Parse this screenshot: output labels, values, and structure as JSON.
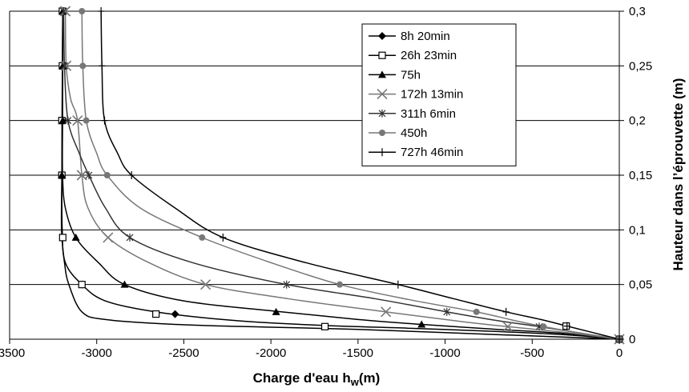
{
  "chart_data": {
    "type": "line",
    "xlabel": "Charge d'eau h",
    "xlabel_sub": "w",
    "xlabel_suffix": "(m)",
    "ylabel": "Hauteur dans l’éprouvette (m)",
    "xlim": [
      -3500,
      0
    ],
    "ylim": [
      0,
      0.3
    ],
    "xticks": [
      -3500,
      -3000,
      -2500,
      -2000,
      -1500,
      -1000,
      -500,
      0
    ],
    "xtick_labels": [
      "-3500",
      "-3000",
      "-2500",
      "-2000",
      "-1500",
      "-1000",
      "-500",
      "0"
    ],
    "yticks": [
      0,
      0.05,
      0.1,
      0.15,
      0.2,
      0.25,
      0.3
    ],
    "ytick_labels": [
      "0",
      "0,05",
      "0,1",
      "0,15",
      "0,2",
      "0,25",
      "0,3"
    ],
    "y_axis_side": "right",
    "grid": "horizontal",
    "legend_position": "top-right",
    "series": [
      {
        "name": "8h 20min",
        "color": "#000000",
        "marker": "diamond",
        "x": [
          -3195,
          -3195,
          -3195,
          -3200,
          -3085,
          -2550,
          0
        ],
        "y": [
          0.3,
          0.25,
          0.2,
          0.15,
          0.05,
          0.023,
          0
        ],
        "curve": [
          [
            -3195,
            0.3
          ],
          [
            -3197,
            0.25
          ],
          [
            -3198,
            0.2
          ],
          [
            -3200,
            0.15
          ],
          [
            -3202,
            0.1
          ],
          [
            -3185,
            0.07
          ],
          [
            -3160,
            0.05
          ],
          [
            -3085,
            0.025
          ],
          [
            -2950,
            0.018
          ],
          [
            -2550,
            0.0135
          ],
          [
            -2000,
            0.011
          ],
          [
            -1500,
            0.009
          ],
          [
            -1000,
            0.006
          ],
          [
            -500,
            0.003
          ],
          [
            0,
            0
          ]
        ],
        "show_markers": true
      },
      {
        "name": "26h 23min",
        "color": "#000000",
        "marker": "square-open",
        "x": [
          -3197,
          -3197,
          -3200,
          -3200,
          -3195,
          -3085,
          -2660,
          -1690,
          -305,
          0
        ],
        "y": [
          0.3,
          0.25,
          0.2,
          0.15,
          0.093,
          0.05,
          0.023,
          0.0115,
          0.012,
          0
        ],
        "curve": [
          [
            -3195,
            0.3
          ],
          [
            -3197,
            0.25
          ],
          [
            -3199,
            0.2
          ],
          [
            -3200,
            0.15
          ],
          [
            -3198,
            0.1
          ],
          [
            -3180,
            0.07
          ],
          [
            -3085,
            0.05
          ],
          [
            -2950,
            0.035
          ],
          [
            -2660,
            0.025
          ],
          [
            -2200,
            0.017
          ],
          [
            -1690,
            0.0125
          ],
          [
            -1200,
            0.01
          ],
          [
            -700,
            0.007
          ],
          [
            -305,
            0.004
          ],
          [
            0,
            0
          ]
        ],
        "show_markers": true
      },
      {
        "name": "75h",
        "color": "#000000",
        "marker": "triangle",
        "x": [
          -3195,
          -3195,
          -3195,
          -3200,
          -3120,
          -2840,
          -1970,
          -1135,
          0
        ],
        "y": [
          0.3,
          0.25,
          0.2,
          0.15,
          0.093,
          0.05,
          0.025,
          0.0135,
          0
        ],
        "curve": [
          [
            -3195,
            0.3
          ],
          [
            -3195,
            0.25
          ],
          [
            -3196,
            0.2
          ],
          [
            -3196,
            0.15
          ],
          [
            -3180,
            0.12
          ],
          [
            -3120,
            0.093
          ],
          [
            -2990,
            0.07
          ],
          [
            -2840,
            0.05
          ],
          [
            -2500,
            0.035
          ],
          [
            -1970,
            0.0255
          ],
          [
            -1500,
            0.018
          ],
          [
            -1135,
            0.0135
          ],
          [
            -700,
            0.009
          ],
          [
            -300,
            0.005
          ],
          [
            0,
            0
          ]
        ],
        "show_markers": true
      },
      {
        "name": "172h 13min",
        "color": "#777777",
        "marker": "x",
        "x": [
          -3180,
          -3175,
          -3110,
          -3085,
          -2935,
          -2375,
          -1340,
          -640,
          0
        ],
        "y": [
          0.3,
          0.25,
          0.2,
          0.15,
          0.093,
          0.05,
          0.025,
          0.0115,
          0
        ],
        "curve": [
          [
            -3180,
            0.3
          ],
          [
            -3175,
            0.25
          ],
          [
            -3150,
            0.22
          ],
          [
            -3110,
            0.2
          ],
          [
            -3085,
            0.15
          ],
          [
            -3050,
            0.12
          ],
          [
            -2935,
            0.093
          ],
          [
            -2700,
            0.07
          ],
          [
            -2375,
            0.05
          ],
          [
            -1900,
            0.037
          ],
          [
            -1340,
            0.025
          ],
          [
            -900,
            0.016
          ],
          [
            -640,
            0.0115
          ],
          [
            -300,
            0.006
          ],
          [
            0,
            0
          ]
        ],
        "show_markers": true
      },
      {
        "name": "311h  6min",
        "color": "#333333",
        "marker": "asterisk",
        "x": [
          -3190,
          -3185,
          -3165,
          -3045,
          -2810,
          -1910,
          -990,
          -460,
          0
        ],
        "y": [
          0.3,
          0.25,
          0.2,
          0.15,
          0.093,
          0.05,
          0.025,
          0.0115,
          0
        ],
        "curve": [
          [
            -3190,
            0.3
          ],
          [
            -3185,
            0.25
          ],
          [
            -3165,
            0.2
          ],
          [
            -3100,
            0.17
          ],
          [
            -3045,
            0.15
          ],
          [
            -2950,
            0.12
          ],
          [
            -2810,
            0.093
          ],
          [
            -2450,
            0.07
          ],
          [
            -1910,
            0.05
          ],
          [
            -1400,
            0.037
          ],
          [
            -990,
            0.025
          ],
          [
            -700,
            0.017
          ],
          [
            -460,
            0.0115
          ],
          [
            -200,
            0.005
          ],
          [
            0,
            0
          ]
        ],
        "show_markers": true
      },
      {
        "name": "450h",
        "color": "#777777",
        "marker": "circle",
        "x": [
          -3085,
          -3080,
          -3060,
          -2940,
          -2395,
          -1605,
          -820,
          -435,
          0
        ],
        "y": [
          0.3,
          0.25,
          0.2,
          0.15,
          0.093,
          0.05,
          0.025,
          0.0115,
          0
        ],
        "curve": [
          [
            -3085,
            0.3
          ],
          [
            -3080,
            0.25
          ],
          [
            -3060,
            0.2
          ],
          [
            -3000,
            0.17
          ],
          [
            -2940,
            0.15
          ],
          [
            -2750,
            0.12
          ],
          [
            -2395,
            0.093
          ],
          [
            -2000,
            0.07
          ],
          [
            -1605,
            0.05
          ],
          [
            -1200,
            0.036
          ],
          [
            -820,
            0.025
          ],
          [
            -600,
            0.017
          ],
          [
            -435,
            0.0115
          ],
          [
            -200,
            0.005
          ],
          [
            0,
            0
          ]
        ],
        "show_markers": true
      },
      {
        "name": "727h 46min",
        "color": "#000000",
        "marker": "plus",
        "x": [
          -2975,
          -2970,
          -2955,
          -2800,
          -2275,
          -1270,
          -650,
          -300,
          0
        ],
        "y": [
          0.3,
          0.25,
          0.2,
          0.15,
          0.093,
          0.05,
          0.025,
          0.012,
          0
        ],
        "curve": [
          [
            -2975,
            0.3
          ],
          [
            -2970,
            0.25
          ],
          [
            -2955,
            0.2
          ],
          [
            -2880,
            0.17
          ],
          [
            -2800,
            0.15
          ],
          [
            -2550,
            0.12
          ],
          [
            -2275,
            0.093
          ],
          [
            -1800,
            0.07
          ],
          [
            -1270,
            0.05
          ],
          [
            -950,
            0.037
          ],
          [
            -650,
            0.025
          ],
          [
            -450,
            0.018
          ],
          [
            -300,
            0.012
          ],
          [
            -150,
            0.006
          ],
          [
            0,
            0
          ]
        ],
        "show_markers": true
      }
    ]
  }
}
